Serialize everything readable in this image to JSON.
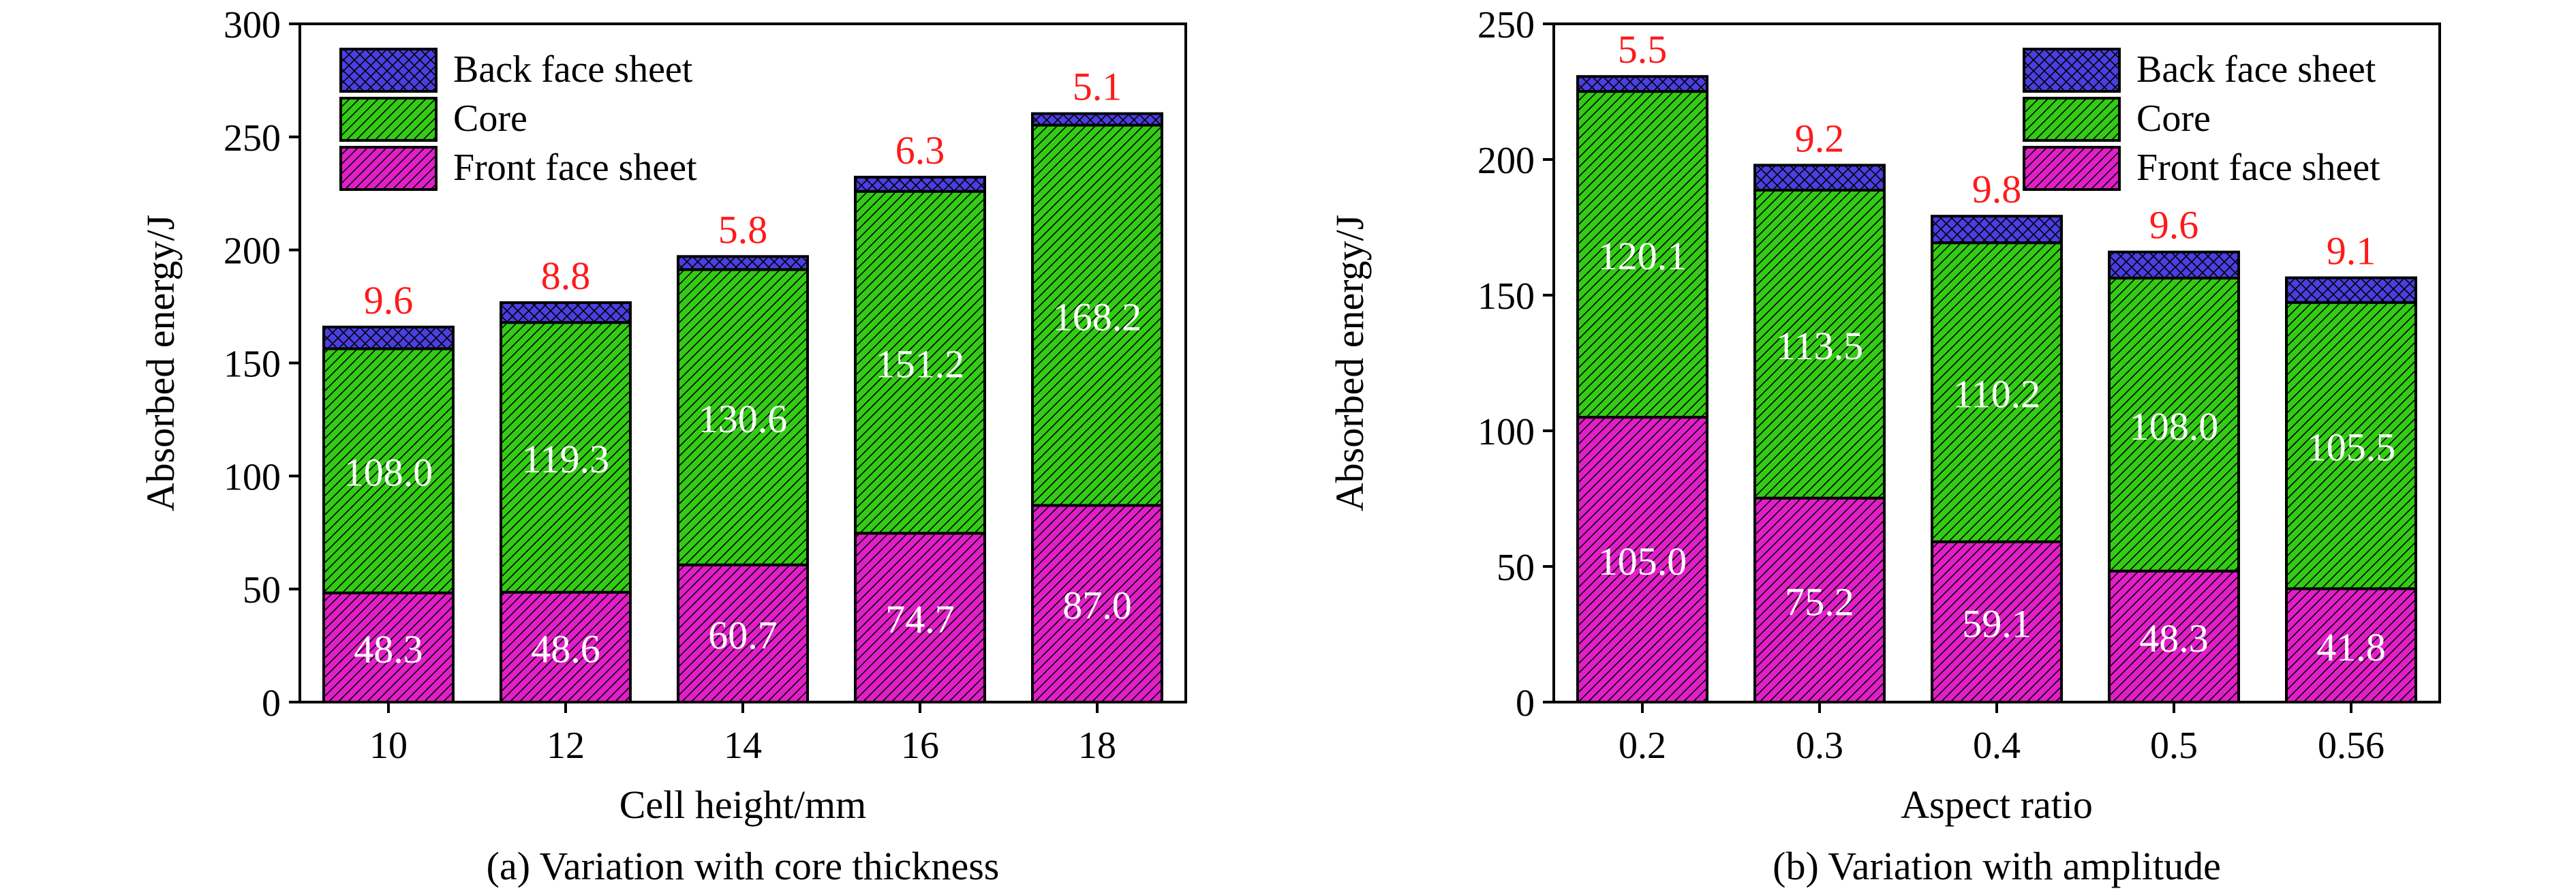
{
  "colors": {
    "back": "#4a3fe0",
    "core": "#33cc14",
    "front": "#e21ec9",
    "top_label": "#ff1a1a",
    "inner_label": "#ffffff",
    "frame": "#000000"
  },
  "chart_data": [
    {
      "type": "bar",
      "stacked": true,
      "caption": "(a) Variation with core thickness",
      "xlabel": "Cell height/mm",
      "ylabel": "Absorbed energy/J",
      "ylim": [
        0,
        300
      ],
      "yticks": [
        "0",
        "50",
        "100",
        "150",
        "200",
        "250",
        "300"
      ],
      "categories": [
        "10",
        "12",
        "14",
        "16",
        "18"
      ],
      "legend": {
        "position": "top-left"
      },
      "series": [
        {
          "name": "Front face sheet",
          "values": [
            48.3,
            48.6,
            60.7,
            74.7,
            87.0
          ],
          "labels": [
            "48.3",
            "48.6",
            "60.7",
            "74.7",
            "87.0"
          ]
        },
        {
          "name": "Core",
          "values": [
            108.0,
            119.3,
            130.6,
            151.2,
            168.2
          ],
          "labels": [
            "108.0",
            "119.3",
            "130.6",
            "151.2",
            "168.2"
          ]
        },
        {
          "name": "Back face sheet",
          "values": [
            9.6,
            8.8,
            5.8,
            6.3,
            5.1
          ],
          "labels": [
            "9.6",
            "8.8",
            "5.8",
            "6.3",
            "5.1"
          ]
        }
      ]
    },
    {
      "type": "bar",
      "stacked": true,
      "caption": "(b) Variation with amplitude",
      "xlabel": "Aspect ratio",
      "ylabel": "Absorbed energy/J",
      "ylim": [
        0,
        250
      ],
      "yticks": [
        "0",
        "50",
        "100",
        "150",
        "200",
        "250"
      ],
      "categories": [
        "0.2",
        "0.3",
        "0.4",
        "0.5",
        "0.56"
      ],
      "legend": {
        "position": "top-right"
      },
      "series": [
        {
          "name": "Front face sheet",
          "values": [
            105.0,
            75.2,
            59.1,
            48.3,
            41.8
          ],
          "labels": [
            "105.0",
            "75.2",
            "59.1",
            "48.3",
            "41.8"
          ]
        },
        {
          "name": "Core",
          "values": [
            120.1,
            113.5,
            110.2,
            108.0,
            105.5
          ],
          "labels": [
            "120.1",
            "113.5",
            "110.2",
            "108.0",
            "105.5"
          ]
        },
        {
          "name": "Back face sheet",
          "values": [
            5.5,
            9.2,
            9.8,
            9.6,
            9.1
          ],
          "labels": [
            "5.5",
            "9.2",
            "9.8",
            "9.6",
            "9.1"
          ]
        }
      ]
    }
  ]
}
